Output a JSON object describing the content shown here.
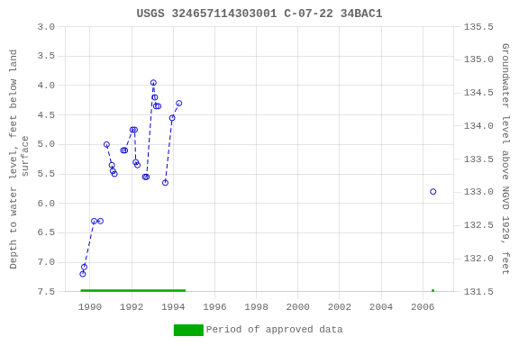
{
  "chart_data": {
    "type": "line",
    "title": "USGS 324657114303001 C-07-22 34BAC1",
    "y_label": "Depth to water level, feet below land\n surface",
    "y2_label": "Groundwater level above NGVD 1929, feet",
    "xlim": [
      1988.8,
      2007.5
    ],
    "xticks": [
      1990,
      1992,
      1994,
      1996,
      1998,
      2000,
      2002,
      2004,
      2006
    ],
    "ylim": [
      7.5,
      3.0
    ],
    "yticks": [
      {
        "value": 3.0,
        "label": "3.0"
      },
      3.5,
      {
        "value": 4.0,
        "label": "4.0"
      },
      4.5,
      {
        "value": 5.0,
        "label": "5.0"
      },
      5.5,
      {
        "value": 6.0,
        "label": "6.0"
      },
      6.5,
      {
        "value": 7.0,
        "label": "7.0"
      },
      7.5
    ],
    "y2lim": [
      131.5,
      135.5
    ],
    "y2ticks": [
      131.5,
      {
        "value": 132.0,
        "label": "132.0"
      },
      132.5,
      {
        "value": 133.0,
        "label": "133.0"
      },
      133.5,
      {
        "value": 134.0,
        "label": "134.0"
      },
      134.5,
      {
        "value": 135.0,
        "label": "135.0"
      },
      135.5
    ],
    "grid": true,
    "legend": "bottom",
    "series": [
      {
        "x": [
          1989.65,
          1989.72,
          1990.2,
          1990.5
        ],
        "values": [
          7.2,
          7.08,
          6.3,
          6.3
        ],
        "color": "#0000CC",
        "line_style": "dashed",
        "marker": "circle"
      },
      {
        "x": [
          1990.8,
          1991.05,
          1991.1,
          1991.18
        ],
        "values": [
          5.0,
          5.35,
          5.45,
          5.5
        ],
        "color": "#0000CC",
        "line_style": "dashed",
        "marker": "circle"
      },
      {
        "x": [
          1991.6,
          1991.68,
          1992.05,
          1992.15,
          1992.2,
          1992.28
        ],
        "values": [
          5.1,
          5.1,
          4.75,
          4.75,
          5.3,
          5.35
        ],
        "color": "#0000CC",
        "line_style": "dashed",
        "marker": "circle"
      },
      {
        "x": [
          1992.65,
          1992.72,
          1993.05,
          1993.12,
          1993.18,
          1993.28
        ],
        "values": [
          5.55,
          5.55,
          3.95,
          4.2,
          4.35,
          4.35
        ],
        "color": "#0000CC",
        "line_style": "dashed",
        "marker": "circle"
      },
      {
        "x": [
          1993.62,
          1993.95,
          1994.28
        ],
        "values": [
          5.65,
          4.55,
          4.3
        ],
        "color": "#0000CC",
        "line_style": "dashed",
        "marker": "circle"
      },
      {
        "x": [
          2006.5
        ],
        "values": [
          5.8
        ],
        "color": "#0000CC",
        "line_style": "none",
        "marker": "circle"
      },
      {
        "name": "Period of approved data",
        "type": "band",
        "color": "#00aa00",
        "periods": [
          [
            1989.55,
            1994.6
          ],
          [
            2006.43,
            2006.55
          ]
        ]
      }
    ]
  }
}
